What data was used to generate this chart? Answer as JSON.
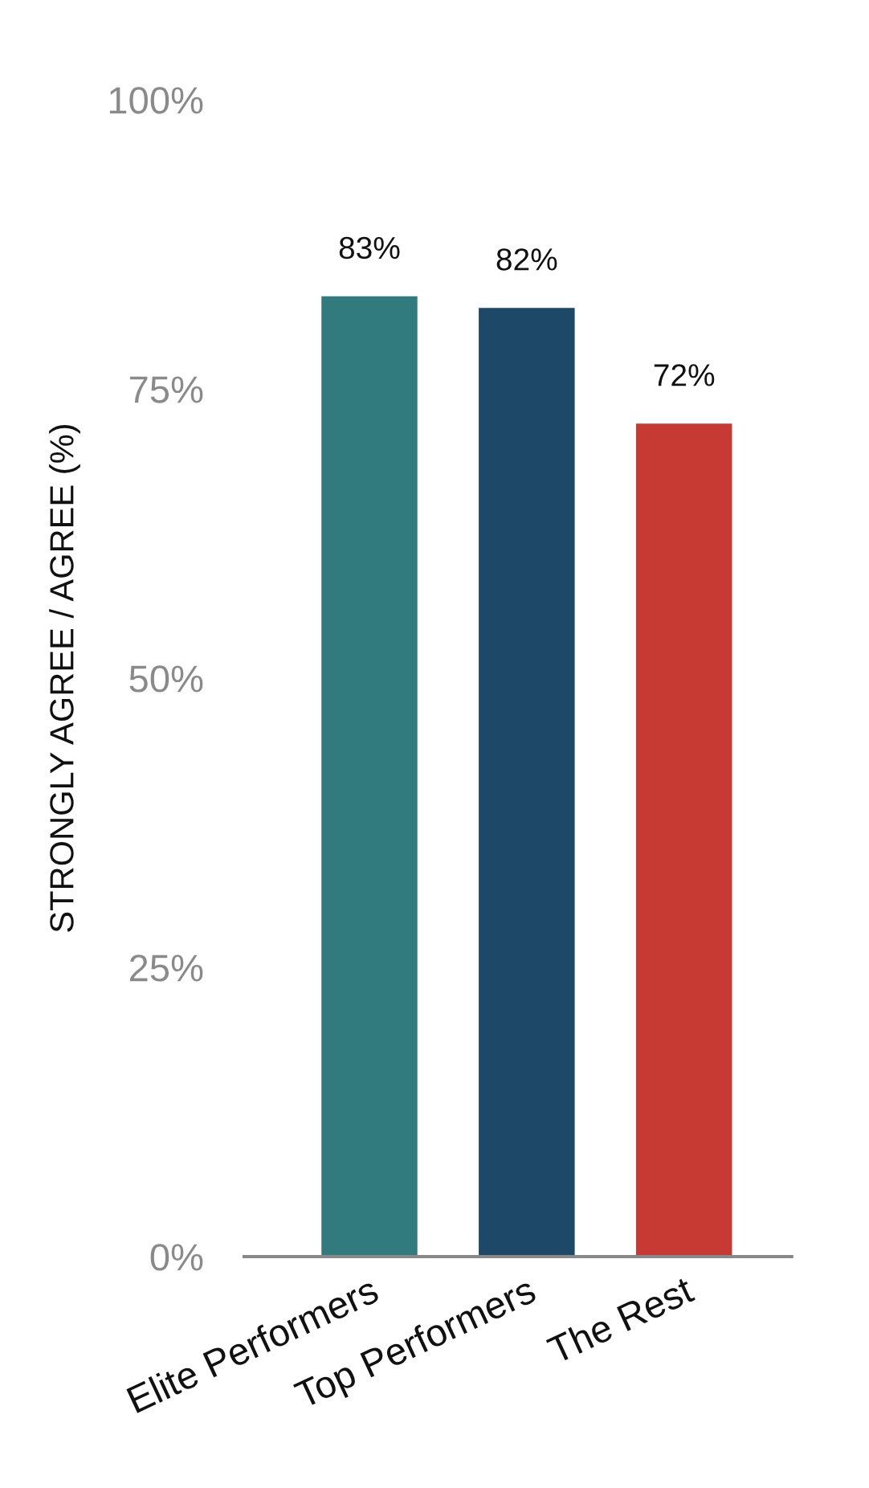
{
  "chart_data": {
    "type": "bar",
    "ylabel": "STRONGLY AGREE / AGREE (%)",
    "categories": [
      "Elite Performers",
      "Top Performers",
      "The Rest"
    ],
    "values": [
      83,
      82,
      72
    ],
    "colors": [
      "#317b7e",
      "#1d4868",
      "#c63a33"
    ],
    "value_labels": [
      "83%",
      "82%",
      "72%"
    ],
    "ylim": [
      0,
      100
    ],
    "yticks": [
      {
        "value": 0,
        "label": "0%"
      },
      {
        "value": 25,
        "label": "25%"
      },
      {
        "value": 50,
        "label": "50%"
      },
      {
        "value": 75,
        "label": "75%"
      },
      {
        "value": 100,
        "label": "100%"
      }
    ],
    "grid": false,
    "legend": false
  }
}
